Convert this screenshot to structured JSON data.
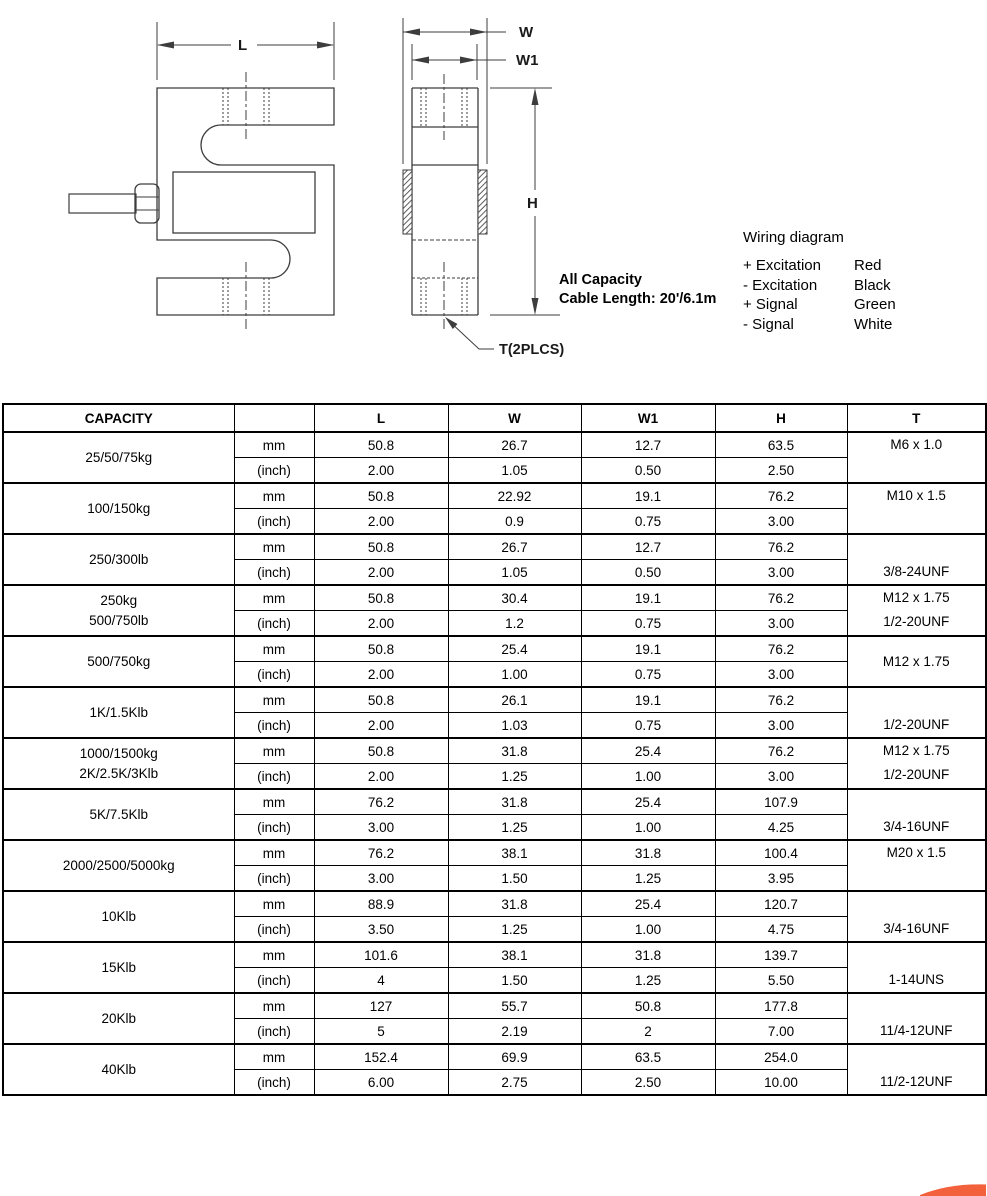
{
  "drawing": {
    "labels": {
      "l": "L",
      "w": "W",
      "w1": "W1",
      "h": "H",
      "t": "T(2PLCS)"
    },
    "note_line1": "All Capacity",
    "note_line2": "Cable Length: 20'/6.1m"
  },
  "wiring": {
    "title": "Wiring diagram",
    "rows": [
      {
        "label": "+ Excitation",
        "color": "Red"
      },
      {
        "label": "- Excitation",
        "color": "Black"
      },
      {
        "label": "+ Signal",
        "color": "Green"
      },
      {
        "label": "- Signal",
        "color": "White"
      }
    ]
  },
  "table": {
    "columns": [
      "CAPACITY",
      "",
      "L",
      "W",
      "W1",
      "H",
      "T"
    ],
    "unit_labels": [
      "mm",
      "(inch)"
    ],
    "groups": [
      {
        "capacity": [
          "25/50/75kg"
        ],
        "mm": [
          "50.8",
          "26.7",
          "12.7",
          "63.5"
        ],
        "inch": [
          "2.00",
          "1.05",
          "0.50",
          "2.50"
        ],
        "t": [
          "M6 x 1.0"
        ],
        "t_align": "top"
      },
      {
        "capacity": [
          "100/150kg"
        ],
        "mm": [
          "50.8",
          "22.92",
          "19.1",
          "76.2"
        ],
        "inch": [
          "2.00",
          "0.9",
          "0.75",
          "3.00"
        ],
        "t": [
          "M10 x 1.5"
        ],
        "t_align": "top"
      },
      {
        "capacity": [
          "250/300lb"
        ],
        "mm": [
          "50.8",
          "26.7",
          "12.7",
          "76.2"
        ],
        "inch": [
          "2.00",
          "1.05",
          "0.50",
          "3.00"
        ],
        "t": [
          "3/8-24UNF"
        ],
        "t_align": "bottom"
      },
      {
        "capacity": [
          "250kg",
          "500/750lb"
        ],
        "mm": [
          "50.8",
          "30.4",
          "19.1",
          "76.2"
        ],
        "inch": [
          "2.00",
          "1.2",
          "0.75",
          "3.00"
        ],
        "t": [
          "M12 x 1.75",
          "1/2-20UNF"
        ],
        "t_align": "both"
      },
      {
        "capacity": [
          "500/750kg"
        ],
        "mm": [
          "50.8",
          "25.4",
          "19.1",
          "76.2"
        ],
        "inch": [
          "2.00",
          "1.00",
          "0.75",
          "3.00"
        ],
        "t": [
          "M12 x 1.75"
        ],
        "t_align": "center"
      },
      {
        "capacity": [
          "1K/1.5Klb"
        ],
        "mm": [
          "50.8",
          "26.1",
          "19.1",
          "76.2"
        ],
        "inch": [
          "2.00",
          "1.03",
          "0.75",
          "3.00"
        ],
        "t": [
          "1/2-20UNF"
        ],
        "t_align": "bottom"
      },
      {
        "capacity": [
          "1000/1500kg",
          "2K/2.5K/3Klb"
        ],
        "mm": [
          "50.8",
          "31.8",
          "25.4",
          "76.2"
        ],
        "inch": [
          "2.00",
          "1.25",
          "1.00",
          "3.00"
        ],
        "t": [
          "M12 x 1.75",
          "1/2-20UNF"
        ],
        "t_align": "both"
      },
      {
        "capacity": [
          "5K/7.5Klb"
        ],
        "mm": [
          "76.2",
          "31.8",
          "25.4",
          "107.9"
        ],
        "inch": [
          "3.00",
          "1.25",
          "1.00",
          "4.25"
        ],
        "t": [
          "3/4-16UNF"
        ],
        "t_align": "bottom"
      },
      {
        "capacity": [
          "2000/2500/5000kg"
        ],
        "mm": [
          "76.2",
          "38.1",
          "31.8",
          "100.4"
        ],
        "inch": [
          "3.00",
          "1.50",
          "1.25",
          "3.95"
        ],
        "t": [
          "M20 x 1.5"
        ],
        "t_align": "top"
      },
      {
        "capacity": [
          "10Klb"
        ],
        "mm": [
          "88.9",
          "31.8",
          "25.4",
          "120.7"
        ],
        "inch": [
          "3.50",
          "1.25",
          "1.00",
          "4.75"
        ],
        "t": [
          "3/4-16UNF"
        ],
        "t_align": "bottom"
      },
      {
        "capacity": [
          "15Klb"
        ],
        "mm": [
          "101.6",
          "38.1",
          "31.8",
          "139.7"
        ],
        "inch": [
          "4",
          "1.50",
          "1.25",
          "5.50"
        ],
        "t": [
          "1-14UNS"
        ],
        "t_align": "bottom"
      },
      {
        "capacity": [
          "20Klb"
        ],
        "mm": [
          "127",
          "55.7",
          "50.8",
          "177.8"
        ],
        "inch": [
          "5",
          "2.19",
          "2",
          "7.00"
        ],
        "t": [
          "11/4-12UNF"
        ],
        "t_align": "bottom"
      },
      {
        "capacity": [
          "40Klb"
        ],
        "mm": [
          "152.4",
          "69.9",
          "63.5",
          "254.0"
        ],
        "inch": [
          "6.00",
          "2.75",
          "2.50",
          "10.00"
        ],
        "t": [
          "11/2-12UNF"
        ],
        "t_align": "bottom"
      }
    ]
  },
  "logo": {
    "color": "#f2613b"
  }
}
